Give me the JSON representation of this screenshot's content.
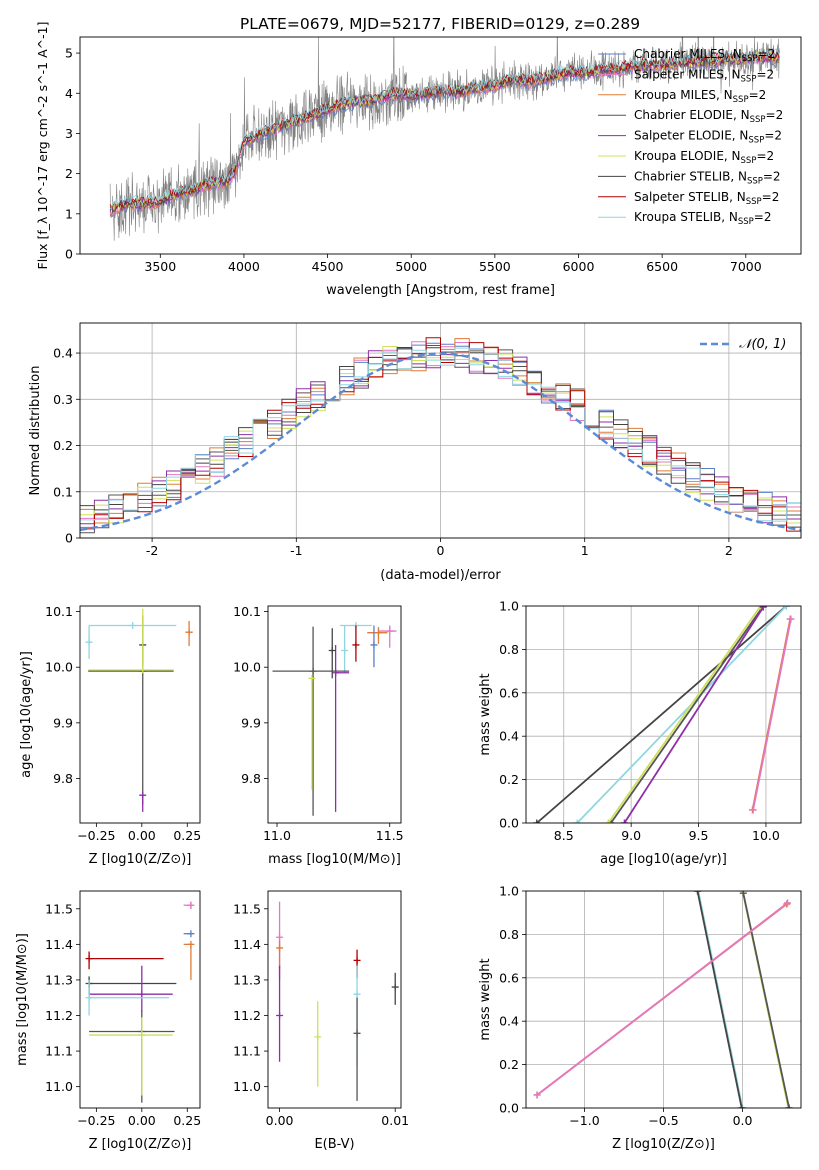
{
  "title": "PLATE=0679, MJD=52177, FIBERID=0129, z=0.289",
  "colors": {
    "Chabrier MILES": "#5b7fc7",
    "Salpeter MILES": "#e377c2",
    "Kroupa MILES": "#e07b39",
    "Chabrier ELODIE": "#555555",
    "Salpeter ELODIE": "#8e2ea8",
    "Kroupa ELODIE": "#cfe05a",
    "Chabrier STELIB": "#444444",
    "Salpeter STELIB": "#b30000",
    "Kroupa STELIB": "#8fd6e0",
    "data": "#808080",
    "normal": "#5b8bd6"
  },
  "chart_data": [
    {
      "type": "line",
      "panel": "spectrum",
      "title": "PLATE=0679, MJD=52177, FIBERID=0129, z=0.289",
      "xlabel": "wavelength [Angstrom, rest frame]",
      "ylabel": "Flux [f_λ 10^-17 erg cm^-2 s^-1 A^-1]",
      "xlim": [
        3020,
        7330
      ],
      "ylim": [
        0,
        5.4
      ],
      "xticks": [
        3500,
        4000,
        4500,
        5000,
        5500,
        6000,
        6500,
        7000
      ],
      "yticks": [
        0,
        1,
        2,
        3,
        4,
        5
      ],
      "legend_position": "top-right",
      "legend": [
        {
          "name": "Chabrier MILES",
          "label": "Chabrier MILES, N",
          "sub": "SSP",
          "suffix": "=2"
        },
        {
          "name": "Salpeter MILES",
          "label": "Salpeter MILES, N",
          "sub": "SSP",
          "suffix": "=2"
        },
        {
          "name": "Kroupa MILES",
          "label": "Kroupa MILES, N",
          "sub": "SSP",
          "suffix": "=2"
        },
        {
          "name": "Chabrier ELODIE",
          "label": "Chabrier ELODIE, N",
          "sub": "SSP",
          "suffix": "=2"
        },
        {
          "name": "Salpeter ELODIE",
          "label": "Salpeter ELODIE, N",
          "sub": "SSP",
          "suffix": "=2"
        },
        {
          "name": "Kroupa ELODIE",
          "label": "Kroupa ELODIE, N",
          "sub": "SSP",
          "suffix": "=2"
        },
        {
          "name": "Chabrier STELIB",
          "label": "Chabrier STELIB, N",
          "sub": "SSP",
          "suffix": "=2"
        },
        {
          "name": "Salpeter STELIB",
          "label": "Salpeter STELIB, N",
          "sub": "SSP",
          "suffix": "=2"
        },
        {
          "name": "Kroupa STELIB",
          "label": "Kroupa STELIB, N",
          "sub": "SSP",
          "suffix": "=2"
        }
      ],
      "continuum": {
        "x": [
          3200,
          3300,
          3400,
          3500,
          3600,
          3700,
          3800,
          3900,
          3950,
          4000,
          4100,
          4200,
          4300,
          4400,
          4500,
          4600,
          4700,
          4800,
          4900,
          5000,
          5100,
          5200,
          5300,
          5400,
          5500,
          5600,
          5700,
          5800,
          5900,
          6000,
          6100,
          6200,
          6300,
          6400,
          6500,
          6600,
          6700,
          6800,
          6900,
          7000,
          7100,
          7200
        ],
        "y": [
          1.1,
          1.25,
          1.25,
          1.3,
          1.5,
          1.6,
          1.75,
          1.8,
          2.1,
          2.8,
          3.0,
          3.15,
          3.3,
          3.45,
          3.6,
          3.75,
          3.8,
          3.85,
          4.0,
          3.95,
          4.0,
          4.05,
          4.05,
          4.15,
          4.2,
          4.35,
          4.3,
          4.35,
          4.5,
          4.5,
          4.55,
          4.6,
          4.65,
          4.7,
          4.7,
          4.75,
          4.8,
          4.8,
          4.85,
          4.85,
          4.9,
          4.9
        ]
      }
    },
    {
      "type": "line",
      "panel": "residuals",
      "xlabel": "(data-model)/error",
      "ylabel": "Normed distribution",
      "xlim": [
        -2.5,
        2.5
      ],
      "ylim": [
        0,
        0.465
      ],
      "xticks": [
        -2,
        -1,
        0,
        1,
        2
      ],
      "yticks": [
        0.0,
        0.1,
        0.2,
        0.3,
        0.4
      ],
      "grid": true,
      "legend_position": "top-right",
      "normal_label": "𝒩(0, 1)"
    },
    {
      "type": "scatter",
      "panel": "age-vs-Z",
      "xlabel": "Z [log10(Z/Z⊙)]",
      "ylabel": "age [log10(age/yr)]",
      "xlim": [
        -0.34,
        0.32
      ],
      "ylim": [
        9.72,
        10.11
      ],
      "xticks": [
        -0.25,
        0.0,
        0.25
      ],
      "yticks": [
        9.8,
        9.9,
        10.0,
        10.1
      ],
      "xticklabels": [
        "−0.25",
        "0.00",
        "0.25"
      ],
      "yticklabels": [
        "9.8",
        "9.9",
        "10.0",
        "10.1"
      ],
      "errorbars": [
        {
          "model": "Kroupa STELIB",
          "x": -0.05,
          "xerr": [
            0.24,
            0.24
          ],
          "y": 10.075,
          "yerr": [
            0,
            0
          ]
        },
        {
          "model": "Kroupa STELIB",
          "x": -0.29,
          "xerr": [
            0,
            0
          ],
          "y": 10.045,
          "yerr": [
            0.03,
            0.03
          ]
        },
        {
          "model": "Chabrier STELIB",
          "x": 0.005,
          "xerr": [
            0,
            0
          ],
          "y": 10.04,
          "yerr": [
            0.035,
            0
          ]
        },
        {
          "model": "Kroupa MILES",
          "x": 0.26,
          "xerr": [
            0.02,
            0.02
          ],
          "y": 10.063,
          "yerr": [
            0.025,
            0.02
          ]
        },
        {
          "model": "Chabrier ELODIE",
          "x": 0.005,
          "xerr": [
            0.3,
            0.17
          ],
          "y": 9.993,
          "yerr": [
            0.24,
            0.1
          ]
        },
        {
          "model": "Kroupa ELODIE",
          "x": 0.005,
          "xerr": [
            0.3,
            0.17
          ],
          "y": 9.995,
          "yerr": [
            0,
            0.11
          ]
        },
        {
          "model": "Salpeter ELODIE",
          "x": 0.005,
          "xerr": [
            0,
            0
          ],
          "y": 9.77,
          "yerr": [
            0.03,
            0
          ]
        }
      ]
    },
    {
      "type": "scatter",
      "panel": "age-vs-mass",
      "xlabel": "mass [log10(M/M⊙)]",
      "ylabel": "",
      "xlim": [
        10.96,
        11.55
      ],
      "ylim": [
        9.72,
        10.11
      ],
      "xticks": [
        11.0,
        11.5
      ],
      "yticks": [
        9.8,
        9.9,
        10.0,
        10.1
      ],
      "xticklabels": [
        "11.0",
        "11.5"
      ],
      "yticklabels": [
        "9.8",
        "9.9",
        "10.0",
        "10.1"
      ],
      "errorbars": [
        {
          "model": "Kroupa STELIB",
          "x": 11.35,
          "xerr": [
            0.07,
            0.07
          ],
          "y": 10.075,
          "yerr": [
            0,
            0
          ]
        },
        {
          "model": "Salpeter STELIB",
          "x": 11.35,
          "xerr": [
            0,
            0
          ],
          "y": 10.04,
          "yerr": [
            0.03,
            0.035
          ]
        },
        {
          "model": "Salpeter MILES",
          "x": 11.5,
          "xerr": [
            0.05,
            0.03
          ],
          "y": 10.065,
          "yerr": [
            0.03,
            0.01
          ]
        },
        {
          "model": "Kroupa MILES",
          "x": 11.45,
          "xerr": [
            0.05,
            0.04
          ],
          "y": 10.062,
          "yerr": [
            0.02,
            0.01
          ]
        },
        {
          "model": "Chabrier MILES",
          "x": 11.43,
          "xerr": [
            0,
            0
          ],
          "y": 10.04,
          "yerr": [
            0.04,
            0.035
          ]
        },
        {
          "model": "Kroupa STELIB",
          "x": 11.3,
          "xerr": [
            0,
            0
          ],
          "y": 10.03,
          "yerr": [
            0.04,
            0.045
          ]
        },
        {
          "model": "Chabrier ELODIE",
          "x": 11.16,
          "xerr": [
            0.18,
            0.16
          ],
          "y": 9.993,
          "yerr": [
            0.26,
            0.08
          ]
        },
        {
          "model": "Kroupa ELODIE",
          "x": 11.155,
          "xerr": [
            0,
            0
          ],
          "y": 9.98,
          "yerr": [
            0.2,
            0
          ]
        },
        {
          "model": "Salpeter ELODIE",
          "x": 11.26,
          "xerr": [
            0,
            0.06
          ],
          "y": 9.99,
          "yerr": [
            0.25,
            0.05
          ]
        },
        {
          "model": "Chabrier STELIB",
          "x": 11.245,
          "xerr": [
            0,
            0
          ],
          "y": 10.03,
          "yerr": [
            0.05,
            0.04
          ]
        }
      ]
    },
    {
      "type": "line",
      "panel": "massweight-vs-age",
      "xlabel": "age [log10(age/yr)]",
      "ylabel": "mass weight",
      "xlim": [
        8.22,
        10.26
      ],
      "ylim": [
        0,
        1
      ],
      "xticks": [
        8.5,
        9.0,
        9.5,
        10.0
      ],
      "yticks": [
        0.0,
        0.2,
        0.4,
        0.6,
        0.8,
        1.0
      ],
      "xticklabels": [
        "8.5",
        "9.0",
        "9.5",
        "10.0"
      ],
      "yticklabels": [
        "0.0",
        "0.2",
        "0.4",
        "0.6",
        "0.8",
        "1.0"
      ],
      "grid": true,
      "series": [
        {
          "model": "Chabrier STELIB",
          "x": [
            8.3,
            10.15
          ],
          "y": [
            0.0,
            1.0
          ]
        },
        {
          "model": "Kroupa STELIB",
          "x": [
            8.6,
            10.15
          ],
          "y": [
            0.0,
            1.0
          ]
        },
        {
          "model": "Chabrier ELODIE",
          "x": [
            8.85,
            9.98
          ],
          "y": [
            0.0,
            1.0
          ]
        },
        {
          "model": "Kroupa ELODIE",
          "x": [
            8.83,
            9.96
          ],
          "y": [
            0.0,
            1.0
          ]
        },
        {
          "model": "Salpeter ELODIE",
          "x": [
            8.95,
            9.98
          ],
          "y": [
            0.0,
            0.995
          ]
        },
        {
          "model": "Kroupa MILES",
          "x": [
            9.9,
            10.18
          ],
          "y": [
            0.06,
            0.94
          ]
        },
        {
          "model": "Salpeter MILES",
          "x": [
            9.905,
            10.185
          ],
          "y": [
            0.06,
            0.94
          ]
        }
      ]
    },
    {
      "type": "scatter",
      "panel": "mass-vs-Z",
      "xlabel": "Z [log10(Z/Z⊙)]",
      "ylabel": "mass [log10(M/M⊙)]",
      "xlim": [
        -0.34,
        0.32
      ],
      "ylim": [
        10.94,
        11.55
      ],
      "xticks": [
        -0.25,
        0.0,
        0.25
      ],
      "yticks": [
        11.0,
        11.1,
        11.2,
        11.3,
        11.4,
        11.5
      ],
      "xticklabels": [
        "−0.25",
        "0.00",
        "0.25"
      ],
      "yticklabels": [
        "11.0",
        "11.1",
        "11.2",
        "11.3",
        "11.4",
        "11.5"
      ],
      "errorbars": [
        {
          "model": "Salpeter MILES",
          "x": 0.27,
          "xerr": [
            0.04,
            0.01
          ],
          "y": 11.51,
          "yerr": [
            0.01,
            0.01
          ]
        },
        {
          "model": "Chabrier MILES",
          "x": 0.27,
          "xerr": [
            0.04,
            0.01
          ],
          "y": 11.43,
          "yerr": [
            0,
            0
          ]
        },
        {
          "model": "Kroupa MILES",
          "x": 0.27,
          "xerr": [
            0.04,
            0.01
          ],
          "y": 11.4,
          "yerr": [
            0.1,
            0
          ]
        },
        {
          "model": "Salpeter STELIB",
          "x": -0.29,
          "xerr": [
            0,
            0.41
          ],
          "y": 11.36,
          "yerr": [
            0.03,
            0.02
          ]
        },
        {
          "model": "Chabrier STELIB",
          "x": -0.29,
          "xerr": [
            0,
            0.48
          ],
          "y": 11.29,
          "yerr": [
            0.03,
            0.02
          ]
        },
        {
          "model": "Salpeter ELODIE",
          "x": 0.0,
          "xerr": [
            0.29,
            0.17
          ],
          "y": 11.26,
          "yerr": [
            0.05,
            0.08
          ]
        },
        {
          "model": "Kroupa STELIB",
          "x": -0.29,
          "xerr": [
            0,
            0.44
          ],
          "y": 11.25,
          "yerr": [
            0.05,
            0.05
          ]
        },
        {
          "model": "Chabrier ELODIE",
          "x": 0.0,
          "xerr": [
            0.29,
            0.18
          ],
          "y": 11.155,
          "yerr": [
            0.2,
            0.06
          ]
        },
        {
          "model": "Kroupa ELODIE",
          "x": 0.0,
          "xerr": [
            0.29,
            0.17
          ],
          "y": 11.145,
          "yerr": [
            0.17,
            0.05
          ]
        }
      ]
    },
    {
      "type": "scatter",
      "panel": "mass-vs-EBV",
      "xlabel": "E(B-V)",
      "ylabel": "",
      "xlim": [
        -0.001,
        0.0105
      ],
      "ylim": [
        10.94,
        11.55
      ],
      "xticks": [
        0.0,
        0.01
      ],
      "yticks": [
        11.0,
        11.1,
        11.2,
        11.3,
        11.4,
        11.5
      ],
      "xticklabels": [
        "0.00",
        "0.01"
      ],
      "yticklabels": [
        "11.0",
        "11.1",
        "11.2",
        "11.3",
        "11.4",
        "11.5"
      ],
      "errorbars": [
        {
          "model": "Salpeter MILES",
          "x": 0.0,
          "xerr": [
            0,
            0
          ],
          "y": 11.42,
          "yerr": [
            0.12,
            0.1
          ]
        },
        {
          "model": "Kroupa MILES",
          "x": 0.0,
          "xerr": [
            0,
            0
          ],
          "y": 11.39,
          "yerr": [
            0.06,
            0.02
          ]
        },
        {
          "model": "Salpeter ELODIE",
          "x": 0.0,
          "xerr": [
            0,
            0
          ],
          "y": 11.2,
          "yerr": [
            0.13,
            0.14
          ]
        },
        {
          "model": "Kroupa ELODIE",
          "x": 0.0033,
          "xerr": [
            0,
            0
          ],
          "y": 11.14,
          "yerr": [
            0.14,
            0.1
          ]
        },
        {
          "model": "Salpeter STELIB",
          "x": 0.0067,
          "xerr": [
            0,
            0
          ],
          "y": 11.355,
          "yerr": [
            0.05,
            0.03
          ]
        },
        {
          "model": "Kroupa STELIB",
          "x": 0.0067,
          "xerr": [
            0,
            0
          ],
          "y": 11.26,
          "yerr": [
            0.2,
            0.08
          ]
        },
        {
          "model": "Chabrier ELODIE",
          "x": 0.0067,
          "xerr": [
            0,
            0
          ],
          "y": 11.15,
          "yerr": [
            0.19,
            0.1
          ]
        },
        {
          "model": "Chabrier STELIB",
          "x": 0.01,
          "xerr": [
            0,
            0
          ],
          "y": 11.28,
          "yerr": [
            0.05,
            0.04
          ]
        }
      ]
    },
    {
      "type": "line",
      "panel": "massweight-vs-Z",
      "xlabel": "Z [log10(Z/Z⊙)]",
      "ylabel": "mass weight",
      "xlim": [
        -1.37,
        0.37
      ],
      "ylim": [
        0,
        1
      ],
      "xticks": [
        -1.0,
        -0.5,
        0.0
      ],
      "yticks": [
        0.0,
        0.2,
        0.4,
        0.6,
        0.8,
        1.0
      ],
      "xticklabels": [
        "−1.0",
        "−0.5",
        "0.0"
      ],
      "yticklabels": [
        "0.0",
        "0.2",
        "0.4",
        "0.6",
        "0.8",
        "1.0"
      ],
      "grid": true,
      "series": [
        {
          "model": "Kroupa STELIB",
          "x": [
            -0.28,
            0.0
          ],
          "y": [
            1.0,
            0.0
          ]
        },
        {
          "model": "Chabrier STELIB",
          "x": [
            -0.285,
            -0.005
          ],
          "y": [
            1.0,
            0.0
          ]
        },
        {
          "model": "Kroupa ELODIE",
          "x": [
            0.0,
            0.29
          ],
          "y": [
            1.0,
            0.0
          ]
        },
        {
          "model": "Chabrier ELODIE",
          "x": [
            0.005,
            0.295
          ],
          "y": [
            0.99,
            0.0
          ]
        },
        {
          "model": "Kroupa MILES",
          "x": [
            -1.3,
            0.28
          ],
          "y": [
            0.06,
            0.94
          ]
        },
        {
          "model": "Salpeter MILES",
          "x": [
            -1.3,
            0.285
          ],
          "y": [
            0.06,
            0.945
          ]
        }
      ]
    }
  ]
}
